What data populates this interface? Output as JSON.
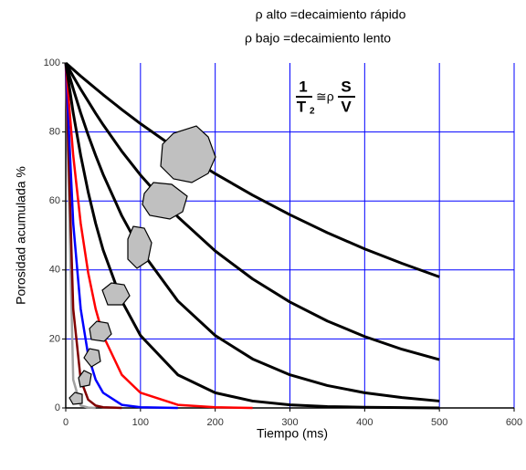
{
  "chart_data": {
    "type": "line",
    "annotations": [
      "ρ   alto =decaimiento rápido",
      "ρ bajo =decaimiento lento"
    ],
    "formula": {
      "numerator_left": "1",
      "denominator_left": "T",
      "subscript": "2",
      "operator": "≅ρ",
      "numerator_right": "S",
      "denominator_right": "V"
    },
    "xlabel": "Tiempo (ms)",
    "ylabel": "Porosidad acumulada %",
    "x": [
      0,
      10,
      20,
      30,
      40,
      50,
      75,
      100,
      150,
      200,
      250,
      300,
      350,
      400,
      450,
      500
    ],
    "series": [
      {
        "color": "#000000",
        "values": [
          100,
          98.1,
          96.2,
          94.4,
          92.6,
          90.8,
          86.5,
          82.4,
          74.8,
          67.9,
          61.7,
          56.0,
          50.8,
          46.1,
          41.9,
          38.0
        ]
      },
      {
        "color": "#000000",
        "values": [
          100,
          96.1,
          92.4,
          88.9,
          85.4,
          82.1,
          74.4,
          67.5,
          55.4,
          45.5,
          37.4,
          30.7,
          25.2,
          20.7,
          17.0,
          14.0
        ]
      },
      {
        "color": "#000000",
        "values": [
          100,
          92.5,
          85.5,
          79.1,
          73.2,
          67.7,
          55.7,
          45.8,
          31.0,
          21.0,
          14.2,
          9.6,
          6.5,
          4.4,
          3.0,
          2.0
        ]
      },
      {
        "color": "#000000",
        "values": [
          100,
          85.5,
          73.2,
          62.6,
          53.5,
          45.8,
          31.0,
          21.0,
          9.6,
          4.4,
          2.0,
          0.9,
          0.4,
          0.2,
          0.1,
          0.0
        ]
      },
      {
        "color": "#ff0000",
        "values": [
          100,
          73.2,
          53.5,
          39.2,
          28.7,
          21.0,
          9.6,
          4.4,
          0.9,
          0.2,
          0.0,
          null,
          null,
          null,
          null,
          null
        ]
      },
      {
        "color": "#0000ff",
        "values": [
          100,
          53.5,
          28.7,
          15.3,
          8.2,
          4.4,
          0.9,
          0.2,
          0.0,
          null,
          null,
          null,
          null,
          null,
          null,
          null
        ]
      },
      {
        "color": "#800000",
        "values": [
          100,
          28.7,
          8.2,
          2.4,
          0.7,
          0.2,
          0.0,
          null,
          null,
          null,
          null,
          null,
          null,
          null,
          null,
          null
        ]
      },
      {
        "color": "#a0a0a0",
        "values": [
          100,
          8.2,
          0.7,
          0.1,
          0.0,
          null,
          null,
          null,
          null,
          null,
          null,
          null,
          null,
          null,
          null,
          null
        ]
      }
    ],
    "xlim": [
      0,
      600
    ],
    "xticks": [
      0,
      100,
      200,
      300,
      400,
      500,
      600
    ],
    "ylim": [
      0,
      100
    ],
    "yticks": [
      0,
      20,
      40,
      60,
      80,
      100
    ],
    "grid": true,
    "grid_color": "#0000ff"
  }
}
